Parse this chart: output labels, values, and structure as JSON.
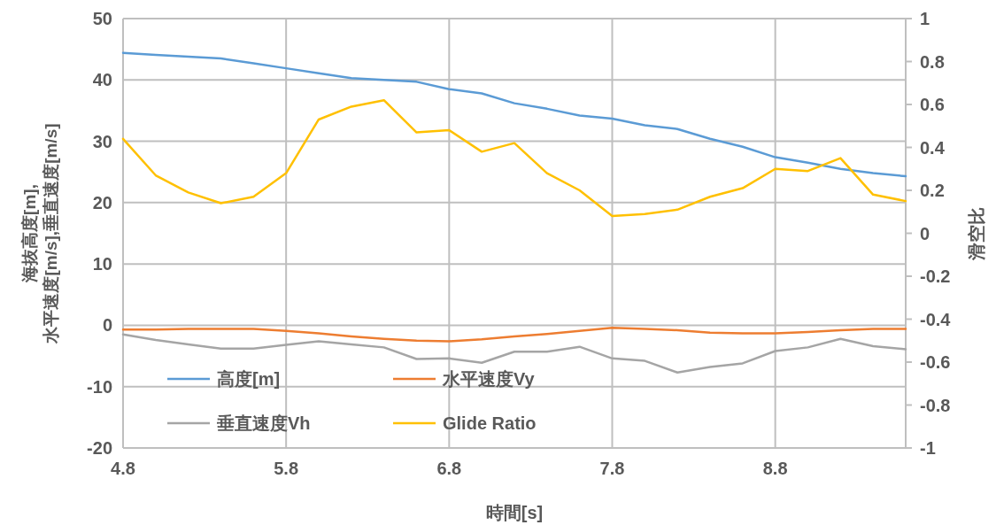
{
  "chart_data": {
    "type": "line",
    "xlabel": "時間[s]",
    "ylabel": "海抜高度[m],\n水平速度[m/s],垂直速度[m/s]",
    "y2label": "滑空比",
    "x": [
      4.8,
      5.0,
      5.2,
      5.4,
      5.6,
      5.8,
      6.0,
      6.2,
      6.4,
      6.6,
      6.8,
      7.0,
      7.2,
      7.4,
      7.6,
      7.8,
      8.0,
      8.2,
      8.4,
      8.6,
      8.8,
      9.0,
      9.2,
      9.4,
      9.6
    ],
    "series": [
      {
        "name": "高度[m]",
        "color": "#5b9bd5",
        "values": [
          44.4,
          44.1,
          43.8,
          43.5,
          42.7,
          41.9,
          41.1,
          40.3,
          40.0,
          39.7,
          38.5,
          37.8,
          36.2,
          35.3,
          34.2,
          33.7,
          32.6,
          32.0,
          30.4,
          29.1,
          27.4,
          26.5,
          25.5,
          24.8,
          24.3
        ]
      },
      {
        "name": "水平速度Vy",
        "color": "#ed7d31",
        "values": [
          -0.7,
          -0.7,
          -0.6,
          -0.6,
          -0.6,
          -0.9,
          -1.3,
          -1.8,
          -2.2,
          -2.5,
          -2.6,
          -2.3,
          -1.8,
          -1.4,
          -0.9,
          -0.4,
          -0.6,
          -0.8,
          -1.2,
          -1.3,
          -1.3,
          -1.1,
          -0.8,
          -0.6,
          -0.6
        ]
      },
      {
        "name": "垂直速度Vh",
        "color": "#a5a5a5",
        "values": [
          -1.5,
          -2.4,
          -3.1,
          -3.8,
          -3.8,
          -3.2,
          -2.6,
          -3.1,
          -3.6,
          -5.5,
          -5.4,
          -6.1,
          -4.3,
          -4.3,
          -3.5,
          -5.4,
          -5.8,
          -7.7,
          -6.8,
          -6.2,
          -4.2,
          -3.6,
          -2.2,
          -3.4,
          -3.9
        ]
      },
      {
        "name": "Glide Ratio",
        "color": "#ffc000",
        "axis": "y2",
        "values": [
          0.44,
          0.27,
          0.19,
          0.14,
          0.17,
          0.28,
          0.53,
          0.59,
          0.62,
          0.47,
          0.48,
          0.38,
          0.42,
          0.28,
          0.2,
          0.08,
          0.09,
          0.11,
          0.17,
          0.21,
          0.3,
          0.29,
          0.35,
          0.18,
          0.15
        ]
      }
    ],
    "xlim": [
      4.8,
      9.6
    ],
    "xticks": [
      4.8,
      5.8,
      6.8,
      7.8,
      8.8
    ],
    "ylim": [
      -20,
      50
    ],
    "yticks": [
      -20,
      -10,
      0,
      10,
      20,
      30,
      40,
      50
    ],
    "y2lim": [
      -1,
      1
    ],
    "y2ticks": [
      -1,
      -0.8,
      -0.6,
      -0.4,
      -0.2,
      0,
      0.2,
      0.4,
      0.6,
      0.8,
      1
    ],
    "grid": true,
    "legend": "bottom left"
  }
}
